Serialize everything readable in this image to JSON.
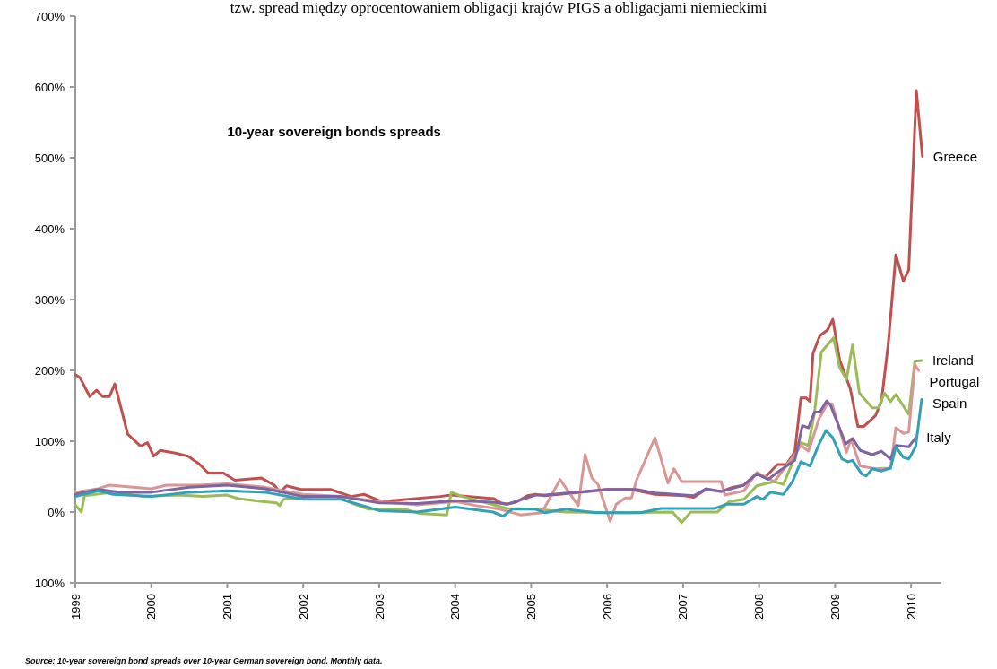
{
  "chart_data": {
    "type": "line",
    "title": "tzw. spread między oprocentowaniem obligacji krajów PIGS a obligacjami niemieckimi",
    "subtitle": "10-year sovereign bonds spreads",
    "annotations": [
      "Source: 10-year sovereign bond spreads over 10-year German sovereign bond. Monthly data."
    ],
    "xlim": [
      1999,
      2010.4
    ],
    "xticks": [
      1999,
      2000,
      2001,
      2002,
      2003,
      2004,
      2005,
      2006,
      2007,
      2008,
      2009,
      2010
    ],
    "ylim": [
      -100,
      700
    ],
    "yticks": [
      {
        "value": -100,
        "label": "100%"
      },
      {
        "value": 0,
        "label": "0%"
      },
      {
        "value": 100,
        "label": "100%"
      },
      {
        "value": 200,
        "label": "200%"
      },
      {
        "value": 300,
        "label": "300%"
      },
      {
        "value": 400,
        "label": "400%"
      },
      {
        "value": 500,
        "label": "500%"
      },
      {
        "value": 600,
        "label": "600%"
      },
      {
        "value": 700,
        "label": "700%"
      }
    ],
    "grid": false,
    "legend": false,
    "marker": "none",
    "line_style": "solid",
    "series": [
      {
        "name": "Greece",
        "color": "#c0504d",
        "x": [
          1999,
          1999.06,
          1999.19,
          1999.28,
          1999.36,
          1999.45,
          1999.52,
          1999.69,
          1999.86,
          1999.95,
          2000.03,
          2000.12,
          2000.33,
          2000.48,
          2000.63,
          2000.75,
          2000.95,
          2001.1,
          2001.45,
          2001.62,
          2001.69,
          2001.78,
          2001.97,
          2002.36,
          2002.63,
          2002.8,
          2003.03,
          2003.8,
          2003.95,
          2004.51,
          2004.6,
          2004.68,
          2004.8,
          2004.95,
          2005.06,
          2005.18,
          2005.77,
          2006,
          2006.32,
          2006.63,
          2007.02,
          2007.14,
          2007.3,
          2007.5,
          2007.65,
          2007.8,
          2007.97,
          2008.08,
          2008.24,
          2008.36,
          2008.47,
          2008.55,
          2008.62,
          2008.67,
          2008.71,
          2008.8,
          2008.9,
          2008.97,
          2009.06,
          2009.2,
          2009.3,
          2009.38,
          2009.53,
          2009.61,
          2009.7,
          2009.8,
          2009.9,
          2009.97,
          2010.07,
          2010.15
        ],
        "values": [
          194,
          190,
          163,
          172,
          163,
          163,
          181,
          110,
          93,
          98,
          79,
          87,
          83,
          79,
          68,
          55,
          55,
          45,
          48,
          38,
          28,
          37,
          32,
          32,
          22,
          25,
          15,
          22,
          24,
          19,
          13,
          11,
          14,
          23,
          25,
          23,
          29,
          32,
          32,
          25,
          23,
          21,
          32,
          29,
          35,
          38,
          55,
          49,
          67,
          67,
          85,
          161,
          161,
          156,
          224,
          249,
          257,
          272,
          215,
          174,
          121,
          121,
          136,
          156,
          237,
          363,
          326,
          342,
          595,
          502
        ]
      },
      {
        "name": "Ireland",
        "color": "#9bbb59",
        "x": [
          1999,
          1999.08,
          1999.12,
          1999.5,
          1999.9,
          2000.36,
          2000.68,
          2000.99,
          2001.15,
          2001.46,
          2001.65,
          2001.69,
          2001.74,
          2002.12,
          2002.44,
          2002.63,
          2002.86,
          2003.34,
          2003.53,
          2003.89,
          2003.95,
          2004.09,
          2004.48,
          2004.68,
          2005.06,
          2005.45,
          2006.24,
          2006.86,
          2006.98,
          2007.1,
          2007.45,
          2007.61,
          2007.8,
          2007.97,
          2008.2,
          2008.32,
          2008.55,
          2008.65,
          2008.73,
          2008.82,
          2008.98,
          2009.06,
          2009.15,
          2009.23,
          2009.32,
          2009.49,
          2009.57,
          2009.65,
          2009.73,
          2009.8,
          2009.97,
          2010.05,
          2010.14
        ],
        "values": [
          10,
          0,
          23,
          28,
          22,
          24,
          22,
          24,
          19,
          15,
          13,
          9,
          18,
          22,
          22,
          13,
          4,
          4,
          -2,
          -4,
          28,
          22,
          11,
          5,
          4,
          0,
          -1,
          0,
          -15,
          0,
          0,
          15,
          18,
          37,
          43,
          39,
          98,
          94,
          141,
          226,
          246,
          204,
          187,
          236,
          168,
          147,
          147,
          168,
          156,
          166,
          138,
          213,
          214
        ]
      },
      {
        "name": "Portugal",
        "color": "#d99694",
        "x": [
          1999,
          1999.3,
          1999.45,
          2000,
          2000.2,
          2000.6,
          2001,
          2001.5,
          2002,
          2002.5,
          2003,
          2003.5,
          2004,
          2004.28,
          2004.59,
          2004.86,
          2005.14,
          2005.38,
          2005.62,
          2005.71,
          2005.8,
          2005.88,
          2006.04,
          2006.12,
          2006.24,
          2006.32,
          2006.39,
          2006.63,
          2006.8,
          2006.88,
          2006.98,
          2007.5,
          2007.55,
          2007.8,
          2007.97,
          2008.2,
          2008.47,
          2008.55,
          2008.65,
          2008.79,
          2008.9,
          2008.96,
          2009.15,
          2009.21,
          2009.33,
          2009.53,
          2009.73,
          2009.8,
          2009.9,
          2009.97,
          2010.05,
          2010.1
        ],
        "values": [
          28,
          33,
          38,
          33,
          38,
          38,
          40,
          35,
          25,
          22,
          15,
          10,
          15,
          9,
          4,
          -4,
          -1,
          46,
          9,
          81,
          48,
          39,
          -13,
          11,
          20,
          20,
          46,
          105,
          41,
          61,
          43,
          43,
          24,
          30,
          56,
          43,
          81,
          94,
          86,
          132,
          153,
          153,
          84,
          103,
          65,
          61,
          62,
          119,
          111,
          113,
          208,
          200
        ]
      },
      {
        "name": "Italy",
        "color": "#8064a2",
        "x": [
          1999,
          1999.3,
          1999.6,
          2000,
          2000.5,
          2001,
          2001.5,
          2002,
          2002.5,
          2003,
          2003.5,
          2004,
          2004.5,
          2004.68,
          2005.06,
          2005.18,
          2006,
          2006.39,
          2006.63,
          2007.02,
          2007.14,
          2007.3,
          2007.5,
          2007.8,
          2007.97,
          2008.12,
          2008.24,
          2008.47,
          2008.57,
          2008.65,
          2008.73,
          2008.8,
          2008.89,
          2008.94,
          2009.14,
          2009.23,
          2009.33,
          2009.49,
          2009.61,
          2009.73,
          2009.8,
          2009.97,
          2010.06
        ],
        "values": [
          25,
          32,
          28,
          28,
          35,
          38,
          33,
          22,
          22,
          13,
          12,
          16,
          14,
          11,
          24,
          24,
          32,
          32,
          27,
          24,
          23,
          33,
          29,
          38,
          54,
          46,
          56,
          73,
          122,
          119,
          141,
          141,
          157,
          151,
          96,
          104,
          87,
          81,
          86,
          75,
          94,
          92,
          105
        ]
      },
      {
        "name": "Spain",
        "color": "#31a0b8",
        "x": [
          1999,
          1999.3,
          1999.5,
          2000,
          2000.5,
          2001,
          2001.5,
          2002,
          2002.5,
          2003,
          2003.5,
          2004,
          2004.5,
          2004.63,
          2004.75,
          2005.06,
          2005.18,
          2005.45,
          2005.85,
          2006.44,
          2006.71,
          2007.41,
          2007.57,
          2007.8,
          2007.97,
          2008.05,
          2008.15,
          2008.32,
          2008.44,
          2008.55,
          2008.67,
          2008.79,
          2008.88,
          2008.97,
          2009.09,
          2009.17,
          2009.23,
          2009.35,
          2009.41,
          2009.49,
          2009.61,
          2009.73,
          2009.8,
          2009.9,
          2009.97,
          2010.06,
          2010.14
        ],
        "values": [
          22,
          30,
          25,
          22,
          28,
          30,
          28,
          18,
          18,
          2,
          0,
          7,
          0,
          -6,
          4,
          4,
          -1,
          4,
          -1,
          -1,
          5,
          5,
          11,
          11,
          22,
          18,
          28,
          25,
          43,
          71,
          65,
          96,
          115,
          105,
          75,
          71,
          73,
          54,
          51,
          61,
          58,
          62,
          92,
          77,
          75,
          92,
          159
        ]
      }
    ]
  }
}
